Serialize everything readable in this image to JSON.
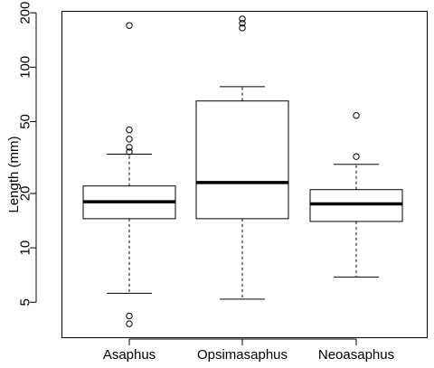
{
  "chart_data": {
    "type": "boxplot",
    "title": "",
    "xlabel": "",
    "ylabel": "Length (mm)",
    "y_scale": "log",
    "ylim": [
      3.2,
      205
    ],
    "y_ticks": [
      5,
      10,
      20,
      50,
      100,
      200
    ],
    "grid": false,
    "legend": "none",
    "categories": [
      "Asaphus",
      "Opsimasaphus",
      "Neoasaphus"
    ],
    "boxes": [
      {
        "category": "Asaphus",
        "whisker_low": 5.6,
        "q1": 14.5,
        "median": 18,
        "q3": 22,
        "whisker_high": 33,
        "outliers": [
          3.8,
          4.2,
          34,
          36,
          40,
          45,
          170
        ]
      },
      {
        "category": "Opsimasaphus",
        "whisker_low": 5.2,
        "q1": 14.5,
        "median": 23,
        "q3": 65,
        "whisker_high": 78,
        "outliers": [
          165,
          175,
          185
        ]
      },
      {
        "category": "Neoasaphus",
        "whisker_low": 6.9,
        "q1": 14,
        "median": 17.5,
        "q3": 21,
        "whisker_high": 29,
        "outliers": [
          32,
          54
        ]
      }
    ]
  }
}
